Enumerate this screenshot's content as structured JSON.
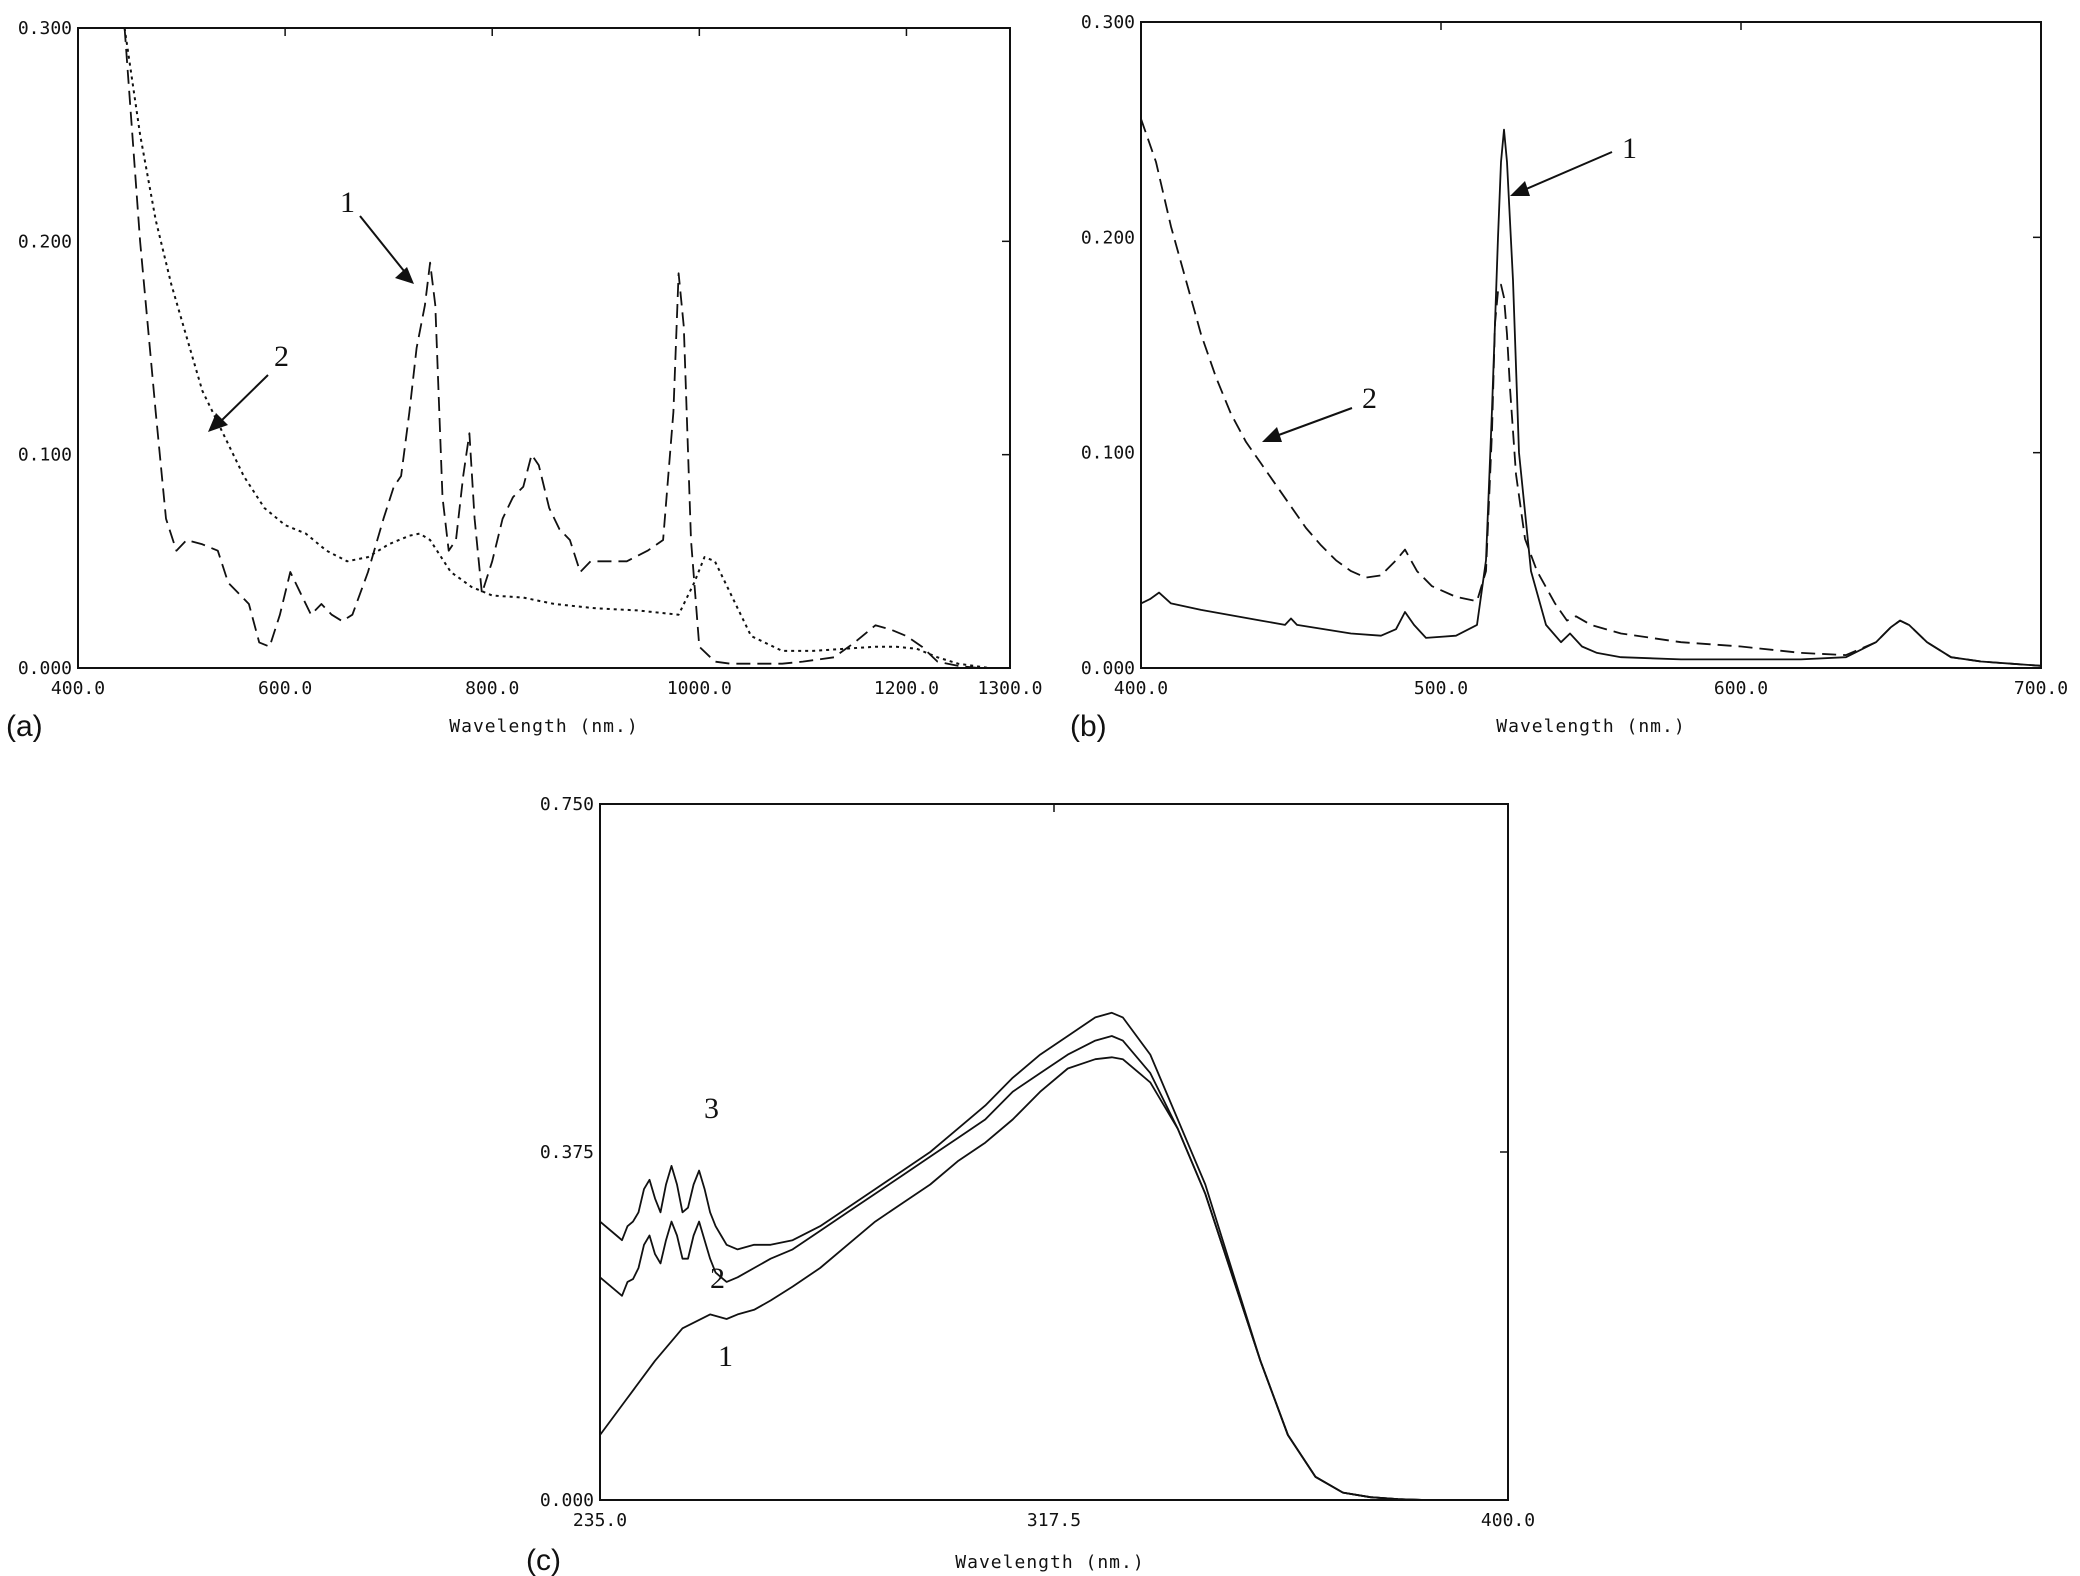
{
  "chart_data": [
    {
      "panel": "(a)",
      "type": "line",
      "xlabel": "Wavelength (nm.)",
      "ylabel": "",
      "xlim": [
        400,
        1300
      ],
      "ylim": [
        0,
        0.3
      ],
      "x_ticks": [
        "400.0",
        "600.0",
        "800.0",
        "1000.0",
        "1200.0",
        "1300.0"
      ],
      "x_tick_values": [
        400,
        600,
        800,
        1000,
        1200,
        1300
      ],
      "y_ticks": [
        "0.000",
        "0.100",
        "0.200",
        "0.300"
      ],
      "y_tick_values": [
        0,
        0.1,
        0.2,
        0.3
      ],
      "series": [
        {
          "name": "1",
          "style": "dashed",
          "x": [
            445,
            460,
            475,
            485,
            495,
            505,
            520,
            535,
            545,
            555,
            565,
            575,
            585,
            595,
            605,
            615,
            625,
            635,
            645,
            655,
            665,
            680,
            695,
            705,
            712,
            720,
            727,
            735,
            740,
            745,
            752,
            758,
            765,
            772,
            778,
            783,
            790,
            800,
            810,
            820,
            830,
            838,
            845,
            855,
            865,
            875,
            885,
            895,
            910,
            930,
            950,
            965,
            975,
            980,
            985,
            992,
            1000,
            1015,
            1030,
            1050,
            1080,
            1100,
            1130,
            1150,
            1170,
            1185,
            1200,
            1215,
            1230,
            1250,
            1270,
            1290
          ],
          "y": [
            0.3,
            0.2,
            0.12,
            0.07,
            0.055,
            0.06,
            0.058,
            0.055,
            0.04,
            0.035,
            0.03,
            0.012,
            0.01,
            0.025,
            0.045,
            0.035,
            0.025,
            0.03,
            0.025,
            0.022,
            0.025,
            0.045,
            0.07,
            0.085,
            0.09,
            0.12,
            0.15,
            0.17,
            0.19,
            0.17,
            0.08,
            0.055,
            0.06,
            0.09,
            0.11,
            0.07,
            0.035,
            0.05,
            0.07,
            0.08,
            0.085,
            0.1,
            0.095,
            0.075,
            0.065,
            0.06,
            0.045,
            0.05,
            0.05,
            0.05,
            0.055,
            0.06,
            0.12,
            0.185,
            0.16,
            0.06,
            0.01,
            0.003,
            0.002,
            0.002,
            0.002,
            0.003,
            0.005,
            0.012,
            0.02,
            0.018,
            0.015,
            0.01,
            0.003,
            0.001,
            0.0,
            0.0
          ]
        },
        {
          "name": "2",
          "style": "dotted",
          "x": [
            445,
            460,
            475,
            490,
            505,
            520,
            540,
            560,
            580,
            600,
            620,
            640,
            660,
            680,
            700,
            720,
            730,
            740,
            760,
            780,
            800,
            830,
            860,
            900,
            940,
            980,
            995,
            1005,
            1015,
            1030,
            1050,
            1080,
            1110,
            1140,
            1170,
            1190,
            1210,
            1230,
            1250,
            1280
          ],
          "y": [
            0.3,
            0.25,
            0.21,
            0.18,
            0.155,
            0.13,
            0.11,
            0.09,
            0.075,
            0.067,
            0.063,
            0.055,
            0.05,
            0.052,
            0.058,
            0.062,
            0.063,
            0.06,
            0.045,
            0.038,
            0.034,
            0.033,
            0.03,
            0.028,
            0.027,
            0.025,
            0.04,
            0.052,
            0.05,
            0.035,
            0.015,
            0.008,
            0.008,
            0.009,
            0.01,
            0.01,
            0.009,
            0.005,
            0.002,
            0.0
          ]
        }
      ],
      "annotations": [
        "1",
        "2"
      ]
    },
    {
      "panel": "(b)",
      "type": "line",
      "xlabel": "Wavelength (nm.)",
      "ylabel": "",
      "xlim": [
        400,
        700
      ],
      "ylim": [
        0,
        0.3
      ],
      "x_ticks": [
        "400.0",
        "500.0",
        "600.0",
        "700.0"
      ],
      "x_tick_values": [
        400,
        500,
        600,
        700
      ],
      "y_ticks": [
        "0.000",
        "0.100",
        "0.200",
        "0.300"
      ],
      "y_tick_values": [
        0,
        0.1,
        0.2,
        0.3
      ],
      "series": [
        {
          "name": "1",
          "style": "solid",
          "x": [
            400,
            403,
            406,
            410,
            420,
            440,
            448,
            450,
            452,
            470,
            480,
            485,
            488,
            491,
            495,
            505,
            512,
            515,
            517,
            519,
            520,
            521,
            522,
            524,
            526,
            530,
            535,
            540,
            543,
            547,
            552,
            560,
            580,
            600,
            620,
            635,
            645,
            650,
            653,
            656,
            662,
            670,
            680,
            690,
            700
          ],
          "y": [
            0.03,
            0.032,
            0.035,
            0.03,
            0.027,
            0.022,
            0.02,
            0.023,
            0.02,
            0.016,
            0.015,
            0.018,
            0.026,
            0.02,
            0.014,
            0.015,
            0.02,
            0.05,
            0.12,
            0.2,
            0.235,
            0.25,
            0.235,
            0.18,
            0.1,
            0.045,
            0.02,
            0.012,
            0.016,
            0.01,
            0.007,
            0.005,
            0.004,
            0.004,
            0.004,
            0.005,
            0.012,
            0.019,
            0.022,
            0.02,
            0.012,
            0.005,
            0.003,
            0.002,
            0.001
          ]
        },
        {
          "name": "2",
          "style": "dashed",
          "x": [
            400,
            405,
            410,
            415,
            420,
            425,
            430,
            435,
            440,
            445,
            450,
            455,
            460,
            465,
            470,
            475,
            480,
            485,
            488,
            492,
            497,
            505,
            512,
            515,
            517,
            518,
            519,
            520,
            521,
            522,
            523,
            525,
            528,
            532,
            538,
            542,
            545,
            550,
            560,
            580,
            600,
            620,
            635,
            645,
            650,
            653,
            656,
            662,
            670,
            680,
            690,
            700
          ],
          "y": [
            0.255,
            0.235,
            0.205,
            0.18,
            0.155,
            0.135,
            0.118,
            0.105,
            0.095,
            0.085,
            0.075,
            0.065,
            0.057,
            0.05,
            0.045,
            0.042,
            0.043,
            0.05,
            0.055,
            0.045,
            0.038,
            0.033,
            0.031,
            0.045,
            0.11,
            0.16,
            0.175,
            0.178,
            0.172,
            0.155,
            0.13,
            0.09,
            0.06,
            0.045,
            0.03,
            0.022,
            0.024,
            0.02,
            0.016,
            0.012,
            0.01,
            0.007,
            0.006,
            0.012,
            0.019,
            0.022,
            0.02,
            0.012,
            0.005,
            0.003,
            0.002,
            0.001
          ]
        }
      ],
      "annotations": [
        "1",
        "2"
      ]
    },
    {
      "panel": "(c)",
      "type": "line",
      "xlabel": "Wavelength (nm.)",
      "ylabel": "",
      "xlim": [
        235,
        400
      ],
      "ylim": [
        0,
        0.75
      ],
      "x_ticks": [
        "235.0",
        "317.5",
        "400.0"
      ],
      "x_tick_values": [
        235,
        317.5,
        400
      ],
      "y_ticks": [
        "0.000",
        "0.375",
        "0.750"
      ],
      "y_tick_values": [
        0,
        0.375,
        0.75
      ],
      "series": [
        {
          "name": "1",
          "style": "solid",
          "x": [
            235,
            240,
            245,
            250,
            255,
            258,
            260,
            263,
            266,
            270,
            275,
            280,
            285,
            290,
            295,
            300,
            305,
            310,
            315,
            320,
            325,
            328,
            330,
            335,
            340,
            345,
            350,
            355,
            360,
            365,
            370,
            375,
            380,
            385,
            390,
            395,
            400
          ],
          "y": [
            0.07,
            0.11,
            0.15,
            0.185,
            0.2,
            0.195,
            0.2,
            0.205,
            0.215,
            0.23,
            0.25,
            0.275,
            0.3,
            0.32,
            0.34,
            0.365,
            0.385,
            0.41,
            0.44,
            0.465,
            0.475,
            0.477,
            0.475,
            0.45,
            0.4,
            0.33,
            0.24,
            0.15,
            0.07,
            0.025,
            0.008,
            0.003,
            0.001,
            0.0,
            0.0,
            0.0,
            0.0
          ]
        },
        {
          "name": "2",
          "style": "solid",
          "x": [
            235,
            238,
            239,
            240,
            241,
            242,
            243,
            244,
            245,
            246,
            247,
            248,
            249,
            250,
            251,
            252,
            253,
            254,
            255,
            256,
            257,
            258,
            260,
            263,
            266,
            270,
            275,
            280,
            285,
            290,
            295,
            300,
            305,
            310,
            315,
            320,
            325,
            328,
            330,
            335,
            340,
            345,
            350,
            355,
            360,
            365,
            370,
            375,
            380,
            385,
            390,
            395,
            400
          ],
          "y": [
            0.24,
            0.225,
            0.22,
            0.235,
            0.238,
            0.25,
            0.275,
            0.285,
            0.265,
            0.255,
            0.28,
            0.3,
            0.285,
            0.26,
            0.26,
            0.285,
            0.3,
            0.28,
            0.26,
            0.245,
            0.24,
            0.235,
            0.24,
            0.25,
            0.26,
            0.27,
            0.29,
            0.31,
            0.33,
            0.35,
            0.37,
            0.39,
            0.41,
            0.44,
            0.46,
            0.48,
            0.495,
            0.5,
            0.495,
            0.46,
            0.4,
            0.33,
            0.24,
            0.15,
            0.07,
            0.025,
            0.008,
            0.003,
            0.001,
            0.0,
            0.0,
            0.0,
            0.0
          ]
        },
        {
          "name": "3",
          "style": "solid",
          "x": [
            235,
            238,
            239,
            240,
            241,
            242,
            243,
            244,
            245,
            246,
            247,
            248,
            249,
            250,
            251,
            252,
            253,
            254,
            255,
            256,
            257,
            258,
            260,
            263,
            266,
            270,
            275,
            280,
            285,
            290,
            295,
            300,
            305,
            310,
            315,
            320,
            325,
            328,
            330,
            335,
            340,
            345,
            350,
            355,
            360,
            365,
            370,
            375,
            380,
            385,
            390,
            395,
            400
          ],
          "y": [
            0.3,
            0.285,
            0.28,
            0.295,
            0.3,
            0.31,
            0.335,
            0.345,
            0.325,
            0.31,
            0.34,
            0.36,
            0.34,
            0.31,
            0.315,
            0.34,
            0.355,
            0.335,
            0.31,
            0.295,
            0.285,
            0.275,
            0.27,
            0.275,
            0.275,
            0.28,
            0.295,
            0.315,
            0.335,
            0.355,
            0.375,
            0.4,
            0.425,
            0.455,
            0.48,
            0.5,
            0.52,
            0.525,
            0.52,
            0.48,
            0.41,
            0.34,
            0.245,
            0.15,
            0.07,
            0.025,
            0.008,
            0.003,
            0.001,
            0.0,
            0.0,
            0.0,
            0.0
          ]
        }
      ],
      "annotations": [
        "1",
        "2",
        "3"
      ]
    }
  ]
}
